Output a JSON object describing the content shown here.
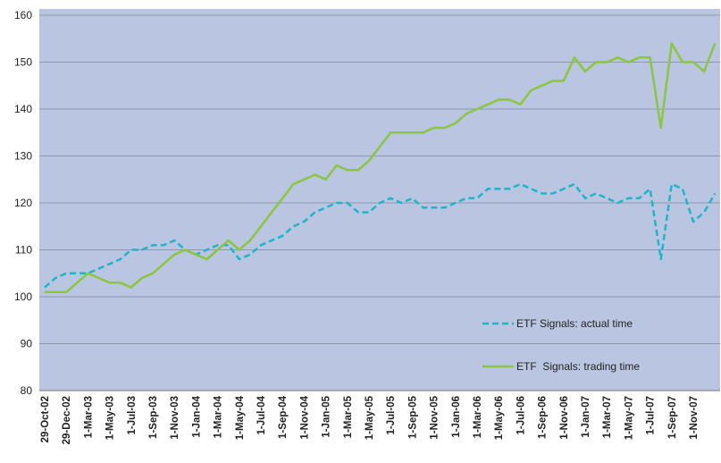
{
  "chart_data": {
    "type": "line",
    "categories": [
      "29-Oct-02",
      null,
      "29-Dec-02",
      null,
      "1-Mar-03",
      null,
      "1-May-03",
      null,
      "1-Jul-03",
      null,
      "1-Sep-03",
      null,
      "1-Nov-03",
      null,
      "1-Jan-04",
      null,
      "1-Mar-04",
      null,
      "1-May-04",
      null,
      "1-Jul-04",
      null,
      "1-Sep-04",
      null,
      "1-Nov-04",
      null,
      "1-Jan-05",
      null,
      "1-Mar-05",
      null,
      "1-May-05",
      null,
      "1-Jul-05",
      null,
      "1-Sep-05",
      null,
      "1-Nov-05",
      null,
      "1-Jan-06",
      null,
      "1-Mar-06",
      null,
      "1-May-06",
      null,
      "1-Jul-06",
      null,
      "1-Sep-06",
      null,
      "1-Nov-06",
      null,
      "1-Jan-07",
      null,
      "1-Mar-07",
      null,
      "1-May-07",
      null,
      "1-Jul-07",
      null,
      "1-Sep-07",
      null,
      "1-Nov-07",
      null,
      null
    ],
    "series": [
      {
        "name": "ETF Signals: actual time",
        "color": "#1fb5c8",
        "linestyle": "dashed",
        "values": [
          102,
          104,
          105,
          105,
          105,
          106,
          107,
          108,
          110,
          110,
          111,
          111,
          112,
          110,
          109,
          110,
          111,
          111,
          108,
          109,
          111,
          112,
          113,
          115,
          116,
          118,
          119,
          120,
          120,
          118,
          118,
          120,
          121,
          120,
          121,
          119,
          119,
          119,
          120,
          121,
          121,
          123,
          123,
          123,
          124,
          123,
          122,
          122,
          123,
          124,
          121,
          122,
          121,
          120,
          121,
          121,
          123,
          108,
          124,
          123,
          116,
          118,
          122
        ]
      },
      {
        "name": "ETF  Signals: trading time",
        "color": "#8cc63f",
        "linestyle": "solid",
        "values": [
          101,
          101,
          101,
          103,
          105,
          104,
          103,
          103,
          102,
          104,
          105,
          107,
          109,
          110,
          109,
          108,
          110,
          112,
          110,
          112,
          115,
          118,
          121,
          124,
          125,
          126,
          125,
          128,
          127,
          127,
          129,
          132,
          135,
          135,
          135,
          135,
          136,
          136,
          137,
          139,
          140,
          141,
          142,
          142,
          141,
          144,
          145,
          146,
          146,
          151,
          148,
          150,
          150,
          151,
          150,
          151,
          151,
          136,
          154,
          150,
          150,
          148,
          154
        ]
      }
    ],
    "ylim": [
      80,
      160
    ],
    "yticks": [
      80,
      90,
      100,
      110,
      120,
      130,
      140,
      150,
      160
    ],
    "grid": true,
    "legend": "lower right"
  }
}
